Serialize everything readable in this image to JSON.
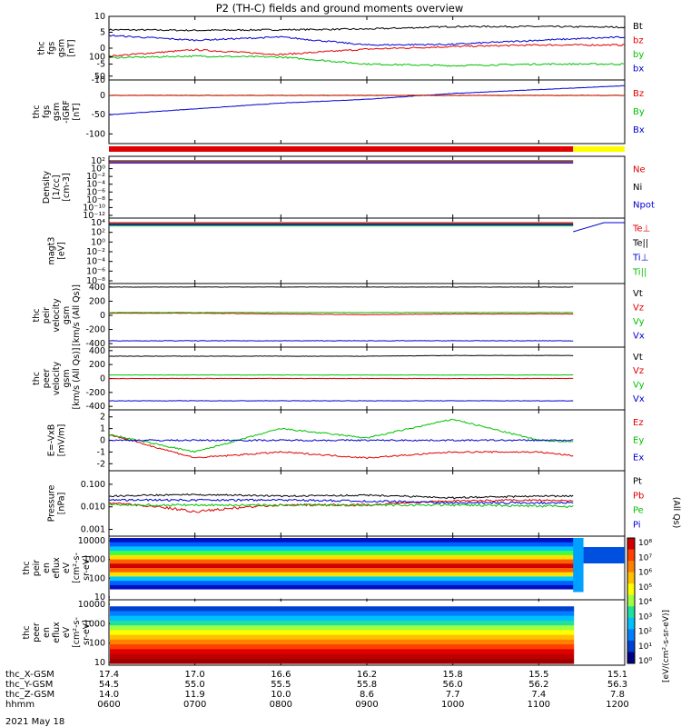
{
  "title": "P2 (TH-C) fields and ground moments overview",
  "date_label": "2021 May 18",
  "colorbar_label": "[eV/(cm²-s-sr-eV)]",
  "colorbar_ticks": [
    "10⁸",
    "10⁷",
    "10⁶",
    "10⁵",
    "10⁴",
    "10³",
    "10²",
    "10¹",
    "10⁰"
  ],
  "colors": {
    "black": "#000000",
    "red": "#e00000",
    "green": "#00c000",
    "blue": "#0000d0",
    "yellow": "#ffff00"
  },
  "mode_bar": {
    "red_until_fraction": 0.9,
    "colors": [
      "red",
      "yellow"
    ]
  },
  "orbit_rows": [
    {
      "label": "thc_X-GSM",
      "values": [
        "17.4",
        "17.0",
        "16.6",
        "16.2",
        "15.8",
        "15.5",
        "15.1"
      ]
    },
    {
      "label": "thc_Y-GSM",
      "values": [
        "54.5",
        "55.0",
        "55.5",
        "55.8",
        "56.0",
        "56.2",
        "56.3"
      ]
    },
    {
      "label": "thc_Z-GSM",
      "values": [
        "14.0",
        "11.9",
        "10.0",
        "8.6",
        "7.7",
        "7.4",
        "7.8"
      ]
    },
    {
      "label": "hhmm",
      "values": [
        "0600",
        "0700",
        "0800",
        "0900",
        "1000",
        "1100",
        "1200"
      ]
    }
  ],
  "panels": [
    {
      "ylabel": [
        "thc",
        "fgs",
        "gsm",
        "[nT]"
      ],
      "yticks": [
        "10",
        "5",
        "0",
        "-5",
        "-10"
      ],
      "legend": [
        {
          "text": "Bt",
          "color": "black"
        },
        {
          "text": "bz",
          "color": "red"
        },
        {
          "text": "by",
          "color": "green"
        },
        {
          "text": "bx",
          "color": "blue"
        }
      ]
    },
    {
      "ylabel": [
        "thc",
        "fgs",
        "gsm",
        "-IGRF",
        "[nT]"
      ],
      "yticks": [
        "100",
        "50",
        "0",
        "-50",
        "-100"
      ],
      "legend": [
        {
          "text": "Bz",
          "color": "red"
        },
        {
          "text": "By",
          "color": "green"
        },
        {
          "text": "Bx",
          "color": "blue"
        }
      ]
    },
    {
      "ylabel": [
        "Density",
        "[1/cc]",
        "[cm-3]"
      ],
      "yticks": [
        "10²",
        "10⁰",
        "10⁻²",
        "10⁻⁴",
        "10⁻⁶",
        "10⁻⁸",
        "10⁻¹⁰",
        "10⁻¹²"
      ],
      "legend": [
        {
          "text": "Ne",
          "color": "red"
        },
        {
          "text": "Ni",
          "color": "black"
        },
        {
          "text": "Npot",
          "color": "blue"
        }
      ]
    },
    {
      "ylabel": [
        "magt3",
        "[eV]"
      ],
      "yticks": [
        "10⁴",
        "10²",
        "10⁰",
        "10⁻²",
        "10⁻⁴",
        "10⁻⁶",
        "10⁻⁸"
      ],
      "legend": [
        {
          "text": "Te⊥",
          "color": "red"
        },
        {
          "text": "Te||",
          "color": "black"
        },
        {
          "text": "Ti⊥",
          "color": "blue"
        },
        {
          "text": "Ti||",
          "color": "green"
        }
      ]
    },
    {
      "ylabel": [
        "thc",
        "peir",
        "velocity",
        "gsm",
        "[km/s (All Qs)]"
      ],
      "yticks": [
        "400",
        "200",
        "0",
        "-200",
        "-400"
      ],
      "legend": [
        {
          "text": "Vt",
          "color": "black"
        },
        {
          "text": "Vz",
          "color": "red"
        },
        {
          "text": "Vy",
          "color": "green"
        },
        {
          "text": "Vx",
          "color": "blue"
        }
      ]
    },
    {
      "ylabel": [
        "thc",
        "peer",
        "velocity",
        "gsm",
        "[km/s (All Qs)]"
      ],
      "yticks": [
        "400",
        "200",
        "0",
        "-200",
        "-400"
      ],
      "legend": [
        {
          "text": "Vt",
          "color": "black"
        },
        {
          "text": "Vz",
          "color": "red"
        },
        {
          "text": "Vy",
          "color": "green"
        },
        {
          "text": "Vx",
          "color": "blue"
        }
      ]
    },
    {
      "ylabel": [
        "E=-VxB",
        "[mV/m]"
      ],
      "yticks": [
        "2",
        "1",
        "0",
        "-1",
        "-2"
      ],
      "legend": [
        {
          "text": "Ez",
          "color": "red"
        },
        {
          "text": "Ey",
          "color": "green"
        },
        {
          "text": "Ex",
          "color": "blue"
        }
      ]
    },
    {
      "ylabel": [
        "Pressure",
        "[nPa]"
      ],
      "yticks": [
        "0.100",
        "0.010",
        "0.001"
      ],
      "legend": [
        {
          "text": "Pt",
          "color": "black"
        },
        {
          "text": "Pb",
          "color": "red"
        },
        {
          "text": "Pe",
          "color": "green"
        },
        {
          "text": "Pi",
          "color": "blue"
        }
      ],
      "side_note": "(All Qs)"
    },
    {
      "ylabel": [
        "thc",
        "peir",
        "en",
        "eflux",
        "eV",
        "[cm²-s-",
        "sr-eV]"
      ],
      "yticks": [
        "10000",
        "1000",
        "100",
        "10"
      ]
    },
    {
      "ylabel": [
        "thc",
        "peer",
        "en",
        "eflux",
        "eV",
        "[cm²-s-",
        "sr-eV]"
      ],
      "yticks": [
        "10000",
        "1000",
        "100",
        "10"
      ]
    }
  ],
  "chart_data": {
    "type": "line",
    "time": [
      "0600",
      "0700",
      "0800",
      "0900",
      "1000",
      "1100",
      "1200"
    ],
    "series": [
      {
        "panel": "fgs gsm",
        "name": "Bt",
        "color": "black",
        "values": [
          5.8,
          5.6,
          5.8,
          6.0,
          6.8,
          6.8,
          6.6
        ]
      },
      {
        "panel": "fgs gsm",
        "name": "bz",
        "color": "red",
        "values": [
          -2.5,
          -0.5,
          -2.0,
          -0.3,
          0.5,
          1.0,
          1.0
        ]
      },
      {
        "panel": "fgs gsm",
        "name": "by",
        "color": "green",
        "values": [
          -3.0,
          -2.5,
          -2.8,
          -5.0,
          -5.5,
          -5.0,
          -5.0
        ]
      },
      {
        "panel": "fgs gsm",
        "name": "bx",
        "color": "blue",
        "values": [
          4.0,
          2.5,
          3.5,
          1.0,
          1.2,
          2.5,
          3.5
        ]
      },
      {
        "panel": "gsm-IGRF",
        "name": "Bx",
        "color": "blue",
        "values": [
          -50,
          -35,
          -20,
          -10,
          5,
          15,
          25
        ]
      },
      {
        "panel": "gsm-IGRF",
        "name": "By",
        "color": "green",
        "values": [
          0,
          0,
          0,
          0,
          0,
          0,
          0
        ]
      },
      {
        "panel": "gsm-IGRF",
        "name": "Bz",
        "color": "red",
        "values": [
          0,
          0,
          0,
          0,
          0,
          0,
          0
        ]
      },
      {
        "panel": "peir velocity",
        "name": "Vt",
        "color": "black",
        "values": [
          400,
          400,
          400,
          400,
          400,
          400,
          400
        ]
      },
      {
        "panel": "peir velocity",
        "name": "Vz",
        "color": "red",
        "values": [
          30,
          30,
          20,
          10,
          20,
          20,
          20
        ]
      },
      {
        "panel": "peir velocity",
        "name": "Vy",
        "color": "green",
        "values": [
          40,
          40,
          40,
          40,
          40,
          40,
          40
        ]
      },
      {
        "panel": "peir velocity",
        "name": "Vx",
        "color": "blue",
        "values": [
          -360,
          -360,
          -360,
          -360,
          -360,
          -360,
          -360
        ]
      },
      {
        "panel": "peer velocity",
        "name": "Vt",
        "color": "black",
        "values": [
          320,
          320,
          320,
          320,
          330,
          330,
          330
        ]
      },
      {
        "panel": "peer velocity",
        "name": "Vz",
        "color": "red",
        "values": [
          0,
          0,
          0,
          0,
          0,
          0,
          0
        ]
      },
      {
        "panel": "peer velocity",
        "name": "Vy",
        "color": "green",
        "values": [
          50,
          50,
          50,
          50,
          50,
          50,
          50
        ]
      },
      {
        "panel": "peer velocity",
        "name": "Vx",
        "color": "blue",
        "values": [
          -320,
          -320,
          -320,
          -320,
          -320,
          -320,
          -320
        ]
      },
      {
        "panel": "E=-VxB",
        "name": "Ez",
        "color": "red",
        "values": [
          0.5,
          -1.5,
          -1.0,
          -1.5,
          -1.0,
          -1.0,
          -1.8
        ]
      },
      {
        "panel": "E=-VxB",
        "name": "Ey",
        "color": "green",
        "values": [
          0.5,
          -1.0,
          1.0,
          0.2,
          1.8,
          0.0,
          -0.3
        ]
      },
      {
        "panel": "E=-VxB",
        "name": "Ex",
        "color": "blue",
        "values": [
          0.0,
          0.0,
          0.0,
          0.0,
          0.0,
          0.0,
          0.0
        ]
      },
      {
        "panel": "Pressure",
        "name": "Pt",
        "color": "black",
        "values": [
          0.03,
          0.035,
          0.03,
          0.033,
          0.025,
          0.03,
          0.03
        ]
      },
      {
        "panel": "Pressure",
        "name": "Pb",
        "color": "red",
        "values": [
          0.015,
          0.006,
          0.012,
          0.012,
          0.018,
          0.02,
          0.018
        ]
      },
      {
        "panel": "Pressure",
        "name": "Pe",
        "color": "green",
        "values": [
          0.012,
          0.012,
          0.012,
          0.012,
          0.012,
          0.011,
          0.009
        ]
      },
      {
        "panel": "Pressure",
        "name": "Pi",
        "color": "blue",
        "values": [
          0.02,
          0.02,
          0.02,
          0.018,
          0.015,
          0.015,
          0.015
        ]
      }
    ]
  }
}
